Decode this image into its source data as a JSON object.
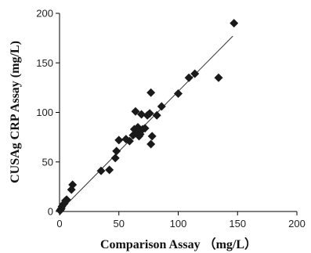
{
  "chart_data": {
    "type": "scatter",
    "xlabel": "Comparison Assay （mg/L）",
    "ylabel": "CUSAg CRP Assay (mg/L)",
    "xlim": [
      0,
      200
    ],
    "ylim": [
      0,
      200
    ],
    "x_ticks": [
      0,
      50,
      100,
      150,
      200
    ],
    "y_ticks": [
      0,
      50,
      100,
      150,
      200
    ],
    "grid": false,
    "legend": "none",
    "marker": "diamond",
    "marker_color": "#1a1a1a",
    "series": [
      {
        "points": [
          [
            0.5,
            1
          ],
          [
            1,
            2
          ],
          [
            1.5,
            3
          ],
          [
            2,
            5
          ],
          [
            3,
            7
          ],
          [
            4,
            8
          ],
          [
            5,
            11
          ],
          [
            6,
            12
          ],
          [
            10,
            22
          ],
          [
            11,
            27
          ],
          [
            35,
            41
          ],
          [
            42,
            42
          ],
          [
            47,
            54
          ],
          [
            48,
            61
          ],
          [
            50,
            72
          ],
          [
            56,
            73
          ],
          [
            59,
            71
          ],
          [
            62,
            77
          ],
          [
            63,
            83
          ],
          [
            64,
            101
          ],
          [
            65,
            80
          ],
          [
            66,
            85
          ],
          [
            67,
            76
          ],
          [
            68,
            78
          ],
          [
            69,
            98
          ],
          [
            70,
            83
          ],
          [
            72,
            84
          ],
          [
            74,
            97
          ],
          [
            76,
            99
          ],
          [
            77,
            120
          ],
          [
            77,
            68
          ],
          [
            78,
            76
          ],
          [
            82,
            97
          ],
          [
            86,
            106
          ],
          [
            100,
            119
          ],
          [
            109,
            135
          ],
          [
            114,
            139
          ],
          [
            134,
            135
          ],
          [
            147,
            190
          ]
        ]
      }
    ],
    "trendline": {
      "x": [
        0,
        146
      ],
      "y": [
        0,
        177
      ]
    }
  }
}
